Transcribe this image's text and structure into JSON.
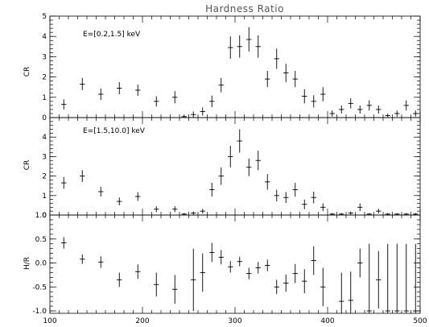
{
  "chart_data": [
    {
      "type": "scatter",
      "title": "Hardness Ratio",
      "ylabel": "CR",
      "annotation": "E=[0.2,1.5] keV",
      "xlim": [
        100,
        500
      ],
      "ylim": [
        0,
        5
      ],
      "yticks": [
        0,
        1,
        2,
        3,
        4,
        5
      ],
      "series": [
        {
          "x": [
            115,
            135,
            155,
            175,
            195,
            215,
            235,
            245,
            255,
            265,
            275,
            285,
            295,
            305,
            315,
            325,
            335,
            345,
            355,
            365,
            375,
            385,
            395,
            405,
            415,
            425,
            435,
            445,
            455,
            465,
            475,
            485,
            495
          ],
          "y": [
            0.65,
            1.65,
            1.15,
            1.45,
            1.35,
            0.8,
            1.0,
            0.05,
            0.15,
            0.3,
            0.8,
            1.6,
            3.45,
            3.5,
            3.85,
            3.5,
            1.9,
            2.9,
            2.2,
            1.9,
            1.05,
            0.8,
            1.15,
            0.2,
            0.4,
            0.7,
            0.4,
            0.6,
            0.4,
            0.1,
            0.2,
            0.6,
            0.2
          ],
          "xerr": [
            5,
            5,
            5,
            5,
            5,
            5,
            5,
            5,
            5,
            5,
            5,
            5,
            5,
            5,
            5,
            5,
            5,
            5,
            5,
            5,
            5,
            5,
            5,
            5,
            5,
            5,
            5,
            5,
            5,
            5,
            5,
            5,
            5
          ],
          "yerr": [
            0.25,
            0.3,
            0.28,
            0.3,
            0.28,
            0.25,
            0.3,
            0.1,
            0.15,
            0.2,
            0.28,
            0.35,
            0.55,
            0.55,
            0.6,
            0.55,
            0.4,
            0.5,
            0.45,
            0.4,
            0.35,
            0.3,
            0.35,
            0.15,
            0.2,
            0.25,
            0.2,
            0.25,
            0.2,
            0.1,
            0.15,
            0.25,
            0.15
          ]
        }
      ]
    },
    {
      "type": "scatter",
      "ylabel": "CR",
      "annotation": "E=[1.5,10.0] keV",
      "xlim": [
        100,
        500
      ],
      "ylim": [
        0,
        5
      ],
      "yticks": [
        0,
        1,
        2,
        3,
        4
      ],
      "series": [
        {
          "x": [
            115,
            135,
            155,
            175,
            195,
            215,
            235,
            245,
            255,
            265,
            275,
            285,
            295,
            305,
            315,
            325,
            335,
            345,
            355,
            365,
            375,
            385,
            395,
            405,
            415,
            425,
            435,
            445,
            455,
            465,
            475,
            485,
            495
          ],
          "y": [
            1.65,
            2.0,
            1.2,
            0.7,
            0.95,
            0.3,
            0.3,
            0.05,
            0.1,
            0.2,
            1.3,
            2.0,
            3.0,
            3.8,
            2.45,
            2.8,
            1.7,
            1.0,
            0.9,
            1.3,
            0.55,
            0.9,
            0.4,
            0.05,
            0.05,
            0.1,
            0.4,
            0.05,
            0.2,
            0.05,
            0.05,
            0.05,
            0.05
          ],
          "xerr": [
            5,
            5,
            5,
            5,
            5,
            5,
            5,
            5,
            5,
            5,
            5,
            5,
            5,
            5,
            5,
            5,
            5,
            5,
            5,
            5,
            5,
            5,
            5,
            5,
            5,
            5,
            5,
            5,
            5,
            5,
            5,
            5,
            5
          ],
          "yerr": [
            0.3,
            0.3,
            0.25,
            0.2,
            0.22,
            0.15,
            0.15,
            0.05,
            0.08,
            0.12,
            0.35,
            0.45,
            0.55,
            0.6,
            0.45,
            0.5,
            0.4,
            0.3,
            0.28,
            0.35,
            0.25,
            0.3,
            0.2,
            0.05,
            0.05,
            0.08,
            0.2,
            0.05,
            0.12,
            0.05,
            0.05,
            0.05,
            0.05
          ]
        }
      ]
    },
    {
      "type": "scatter",
      "ylabel": "H/R",
      "xlim": [
        100,
        500
      ],
      "ylim": [
        -1.05,
        1.0
      ],
      "yticks": [
        -1.0,
        -0.5,
        0.0,
        0.5,
        1.0
      ],
      "xticks": [
        100,
        200,
        300,
        400,
        500
      ],
      "series": [
        {
          "x": [
            115,
            135,
            155,
            175,
            195,
            215,
            235,
            255,
            265,
            275,
            285,
            295,
            305,
            315,
            325,
            335,
            345,
            355,
            365,
            375,
            385,
            395,
            415,
            425,
            435,
            445,
            455,
            465,
            475,
            485,
            495
          ],
          "y": [
            0.42,
            0.08,
            0.02,
            -0.35,
            -0.18,
            -0.45,
            -0.55,
            -0.35,
            -0.2,
            0.22,
            0.12,
            -0.08,
            0.03,
            -0.22,
            -0.1,
            -0.05,
            -0.5,
            -0.42,
            -0.22,
            -0.38,
            0.05,
            -0.5,
            -0.8,
            -0.78,
            0.0,
            -1.0,
            -0.35,
            -1.0,
            -1.0,
            -1.0,
            -1.0
          ],
          "xerr": [
            5,
            5,
            5,
            5,
            5,
            5,
            5,
            5,
            5,
            5,
            5,
            5,
            5,
            5,
            5,
            5,
            5,
            5,
            5,
            5,
            5,
            5,
            5,
            5,
            5,
            5,
            5,
            5,
            5,
            5,
            5
          ],
          "yerr": [
            0.12,
            0.1,
            0.12,
            0.15,
            0.15,
            0.25,
            0.3,
            0.65,
            0.4,
            0.2,
            0.15,
            0.12,
            0.1,
            0.12,
            0.12,
            0.12,
            0.15,
            0.18,
            0.2,
            0.25,
            0.3,
            0.4,
            0.6,
            0.6,
            0.3,
            1.4,
            0.6,
            1.4,
            1.4,
            1.4,
            1.4
          ]
        }
      ]
    }
  ]
}
